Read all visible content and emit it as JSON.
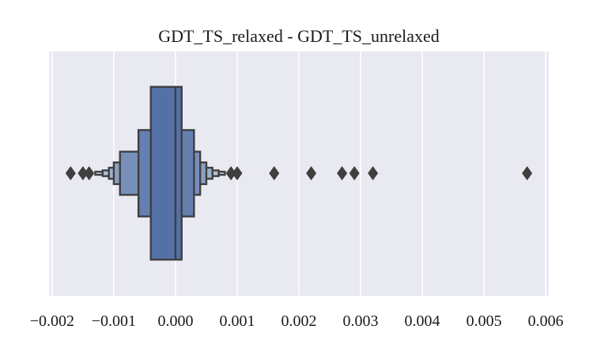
{
  "chart_data": {
    "type": "boxen",
    "title": "GDT_TS_relaxed - GDT_TS_unrelaxed",
    "xlabel": "",
    "ylabel": "",
    "orientation": "horizontal",
    "xlim": [
      -0.00205,
      0.00605
    ],
    "x_ticks": [
      -0.002,
      -0.001,
      0.0,
      0.001,
      0.002,
      0.003,
      0.004,
      0.005,
      0.006
    ],
    "x_tick_labels": [
      "−0.002",
      "−0.001",
      "0.000",
      "0.001",
      "0.002",
      "0.003",
      "0.004",
      "0.005",
      "0.006"
    ],
    "grid": true,
    "median": 0.0,
    "boxes": [
      {
        "low": -0.0004,
        "high": 0.0001,
        "height": 0.78
      },
      {
        "low": -0.0006,
        "high": 0.0003,
        "height": 0.39
      },
      {
        "low": -0.0009,
        "high": 0.0004,
        "height": 0.195
      },
      {
        "low": -0.001,
        "high": 0.0005,
        "height": 0.098
      },
      {
        "low": -0.00108,
        "high": 0.0006,
        "height": 0.05
      },
      {
        "low": -0.00118,
        "high": 0.0007,
        "height": 0.026
      },
      {
        "low": -0.0013,
        "high": 0.0008,
        "height": 0.014
      }
    ],
    "outliers": [
      -0.0017,
      -0.0015,
      -0.0014,
      0.0009,
      0.001,
      0.0016,
      0.0022,
      0.0027,
      0.0029,
      0.0032,
      0.0057
    ],
    "colors": {
      "plot_background": "#e9e9f1",
      "grid": "#ffffff",
      "edge": "#3f3f3f",
      "box_levels": [
        "#5470a6",
        "#6580b0",
        "#7690ba",
        "#89a0c3",
        "#9cb0cd",
        "#b0c0d7",
        "#c4d0e1"
      ]
    }
  }
}
